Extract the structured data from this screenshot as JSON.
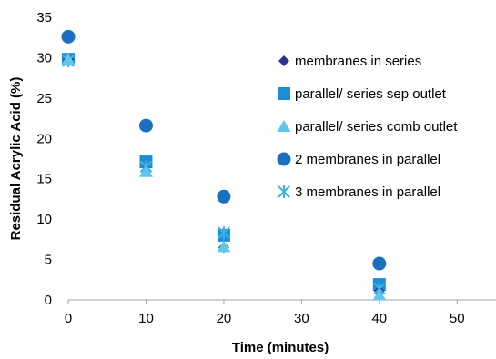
{
  "chart_data": {
    "type": "scatter",
    "title": "",
    "xlabel": "Time (minutes)",
    "ylabel": "Residual Acrylic Acid (%)",
    "xlim": [
      0,
      55
    ],
    "ylim": [
      0,
      35
    ],
    "x_ticks": [
      "0",
      "10",
      "20",
      "30",
      "40",
      "50"
    ],
    "y_ticks": [
      "0",
      "5",
      "10",
      "15",
      "20",
      "25",
      "30",
      "35"
    ],
    "grid": false,
    "legend_position": "right",
    "series": [
      {
        "name": "membranes in series",
        "marker": "diamond",
        "color": "#2e3192",
        "points": [
          [
            0,
            29.8
          ],
          [
            10,
            16.0
          ],
          [
            20,
            6.5
          ],
          [
            40,
            1.1
          ]
        ]
      },
      {
        "name": "parallel/ series sep outlet",
        "marker": "square",
        "color": "#1f8dd6",
        "points": [
          [
            0,
            29.8
          ],
          [
            10,
            17.1
          ],
          [
            20,
            8.0
          ],
          [
            40,
            1.9
          ]
        ]
      },
      {
        "name": "parallel/ series comb outlet",
        "marker": "triangle",
        "color": "#62c6ea",
        "points": [
          [
            0,
            29.8
          ],
          [
            10,
            15.9
          ],
          [
            20,
            6.6
          ],
          [
            40,
            0.6
          ]
        ]
      },
      {
        "name": "2 membranes in parallel",
        "marker": "circle",
        "color": "#1a6fbf",
        "points": [
          [
            0,
            32.6
          ],
          [
            10,
            21.6
          ],
          [
            20,
            12.8
          ],
          [
            40,
            4.5
          ]
        ]
      },
      {
        "name": "3 membranes in parallel",
        "marker": "asterisk",
        "color": "#3fb2e4",
        "points": [
          [
            0,
            29.6
          ],
          [
            10,
            16.5
          ],
          [
            20,
            8.3
          ],
          [
            40,
            1.4
          ]
        ]
      }
    ]
  }
}
